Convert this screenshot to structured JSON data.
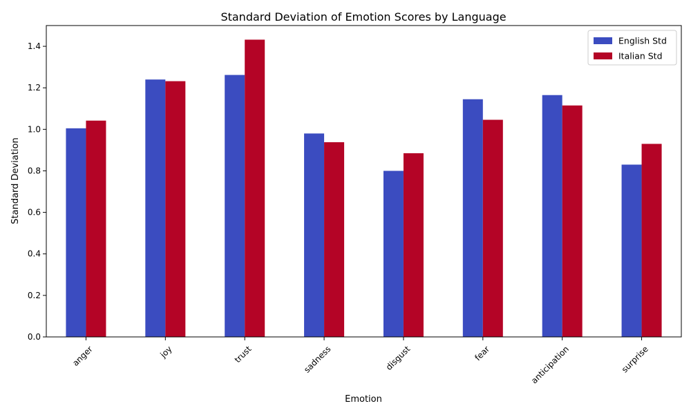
{
  "chart_data": {
    "type": "bar",
    "title": "Standard Deviation of Emotion Scores by Language",
    "xlabel": "Emotion",
    "ylabel": "Standard Deviation",
    "categories": [
      "anger",
      "joy",
      "trust",
      "sadness",
      "disgust",
      "fear",
      "anticipation",
      "surprise"
    ],
    "series": [
      {
        "name": "English Std",
        "color": "#3b4cc0",
        "values": [
          1.005,
          1.24,
          1.262,
          0.98,
          0.8,
          1.145,
          1.165,
          0.83
        ]
      },
      {
        "name": "Italian Std",
        "color": "#b40426",
        "values": [
          1.042,
          1.232,
          1.432,
          0.938,
          0.885,
          1.046,
          1.115,
          0.93
        ]
      }
    ],
    "ylim": [
      0,
      1.5
    ],
    "yticks": [
      "0.0",
      "0.2",
      "0.4",
      "0.6",
      "0.8",
      "1.0",
      "1.2",
      "1.4"
    ],
    "legend_position": "top-right",
    "grid": false
  }
}
